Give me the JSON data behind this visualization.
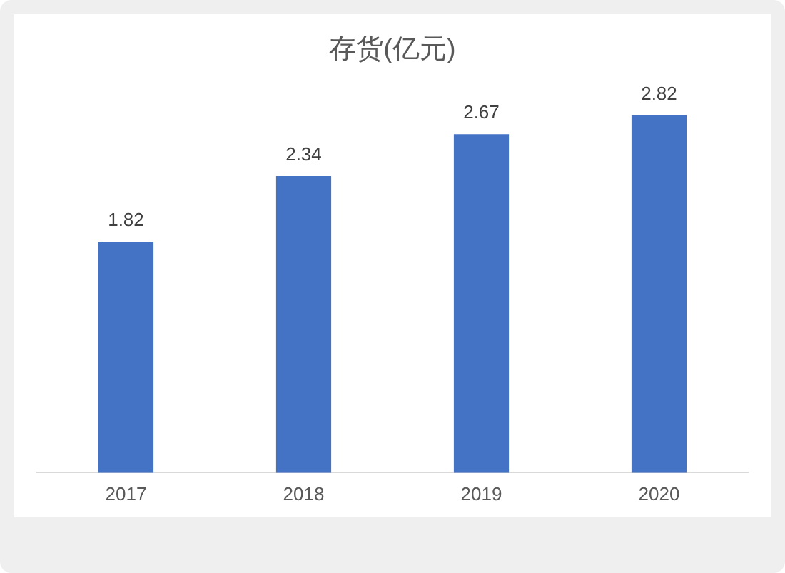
{
  "chart_data": {
    "type": "bar",
    "title": "存货(亿元)",
    "categories": [
      "2017",
      "2018",
      "2019",
      "2020"
    ],
    "values": [
      1.82,
      2.34,
      2.67,
      2.82
    ],
    "color": "#4472c4",
    "data_labels": true
  }
}
